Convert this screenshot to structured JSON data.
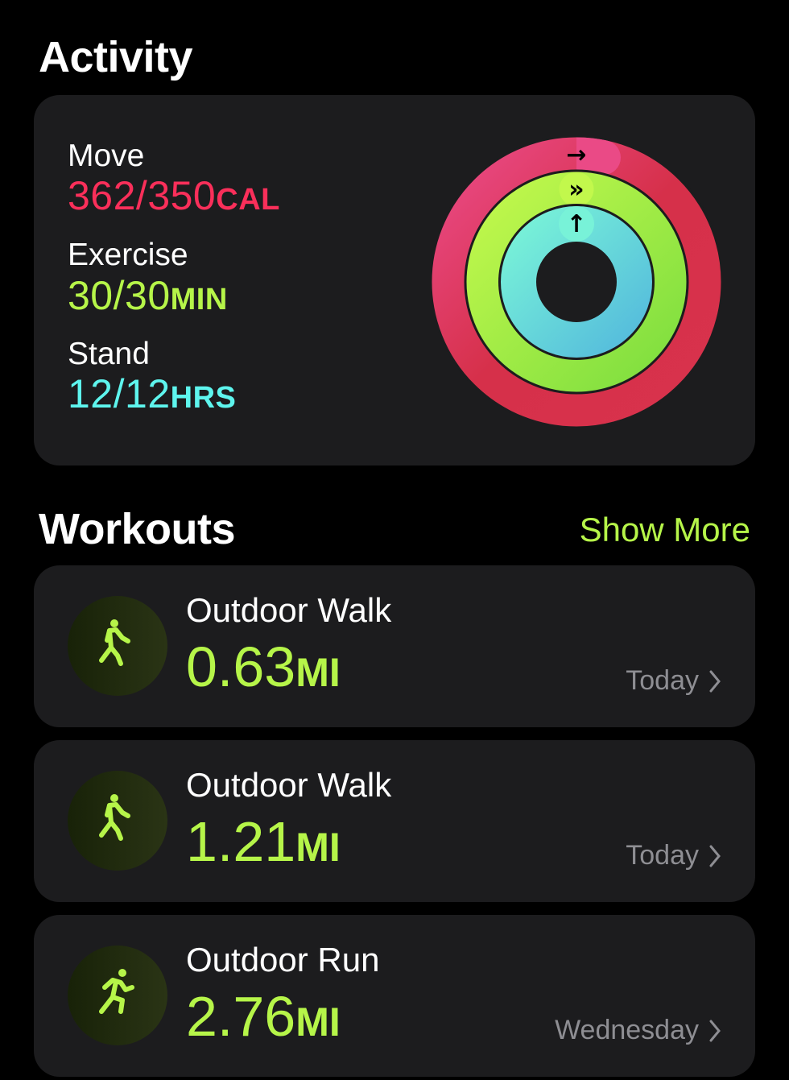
{
  "activity": {
    "title": "Activity",
    "move": {
      "label": "Move",
      "value": "362/350",
      "unit": "CAL",
      "progress": 1.034,
      "color": "#fa2f5a"
    },
    "exercise": {
      "label": "Exercise",
      "value": "30/30",
      "unit": "MIN",
      "progress": 1.0,
      "color": "#b6f549"
    },
    "stand": {
      "label": "Stand",
      "value": "12/12",
      "unit": "HRS",
      "progress": 1.0,
      "color": "#5ef5ee"
    }
  },
  "workouts": {
    "title": "Workouts",
    "show_more": "Show More",
    "items": [
      {
        "name": "Outdoor Walk",
        "value": "0.63",
        "unit": "MI",
        "date": "Today",
        "icon": "walk-icon"
      },
      {
        "name": "Outdoor Walk",
        "value": "1.21",
        "unit": "MI",
        "date": "Today",
        "icon": "walk-icon"
      },
      {
        "name": "Outdoor Run",
        "value": "2.76",
        "unit": "MI",
        "date": "Wednesday",
        "icon": "run-icon"
      }
    ]
  }
}
